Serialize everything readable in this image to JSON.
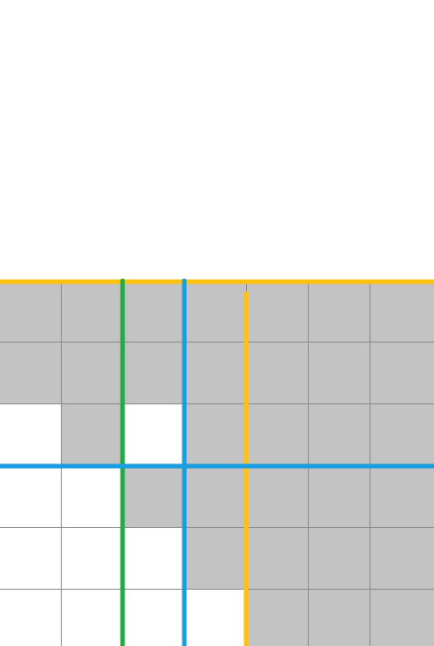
{
  "diagram": {
    "title": "",
    "grid": {
      "columns": 7,
      "rows": 6,
      "filled_cells": [
        [
          1,
          1,
          1,
          1,
          1,
          1,
          1
        ],
        [
          1,
          1,
          1,
          1,
          1,
          1,
          1
        ],
        [
          0,
          1,
          0,
          1,
          1,
          1,
          1
        ],
        [
          0,
          0,
          1,
          1,
          1,
          1,
          1
        ],
        [
          0,
          0,
          0,
          1,
          1,
          1,
          1
        ],
        [
          0,
          0,
          0,
          0,
          1,
          1,
          1
        ]
      ]
    },
    "lines": [
      {
        "name": "yellow-horizontal-line",
        "orientation": "horizontal",
        "at_row_boundary": 0,
        "color": "#ffc20e"
      },
      {
        "name": "green-vertical-line",
        "orientation": "vertical",
        "at_column_boundary": 2,
        "color": "#22aa44"
      },
      {
        "name": "blue-vertical-line",
        "orientation": "vertical",
        "at_column_boundary": 3,
        "color": "#1a9ee0"
      },
      {
        "name": "yellow-vertical-line",
        "orientation": "vertical",
        "at_column_boundary": 4,
        "color": "#ffc20e"
      },
      {
        "name": "blue-horizontal-line",
        "orientation": "horizontal",
        "at_row_boundary": 3,
        "color": "#1a9ee0"
      }
    ],
    "colors": {
      "filled": "#c3c3c3",
      "empty": "#ffffff",
      "gridline": "#8a8a8a",
      "background": "#ffffff"
    }
  }
}
